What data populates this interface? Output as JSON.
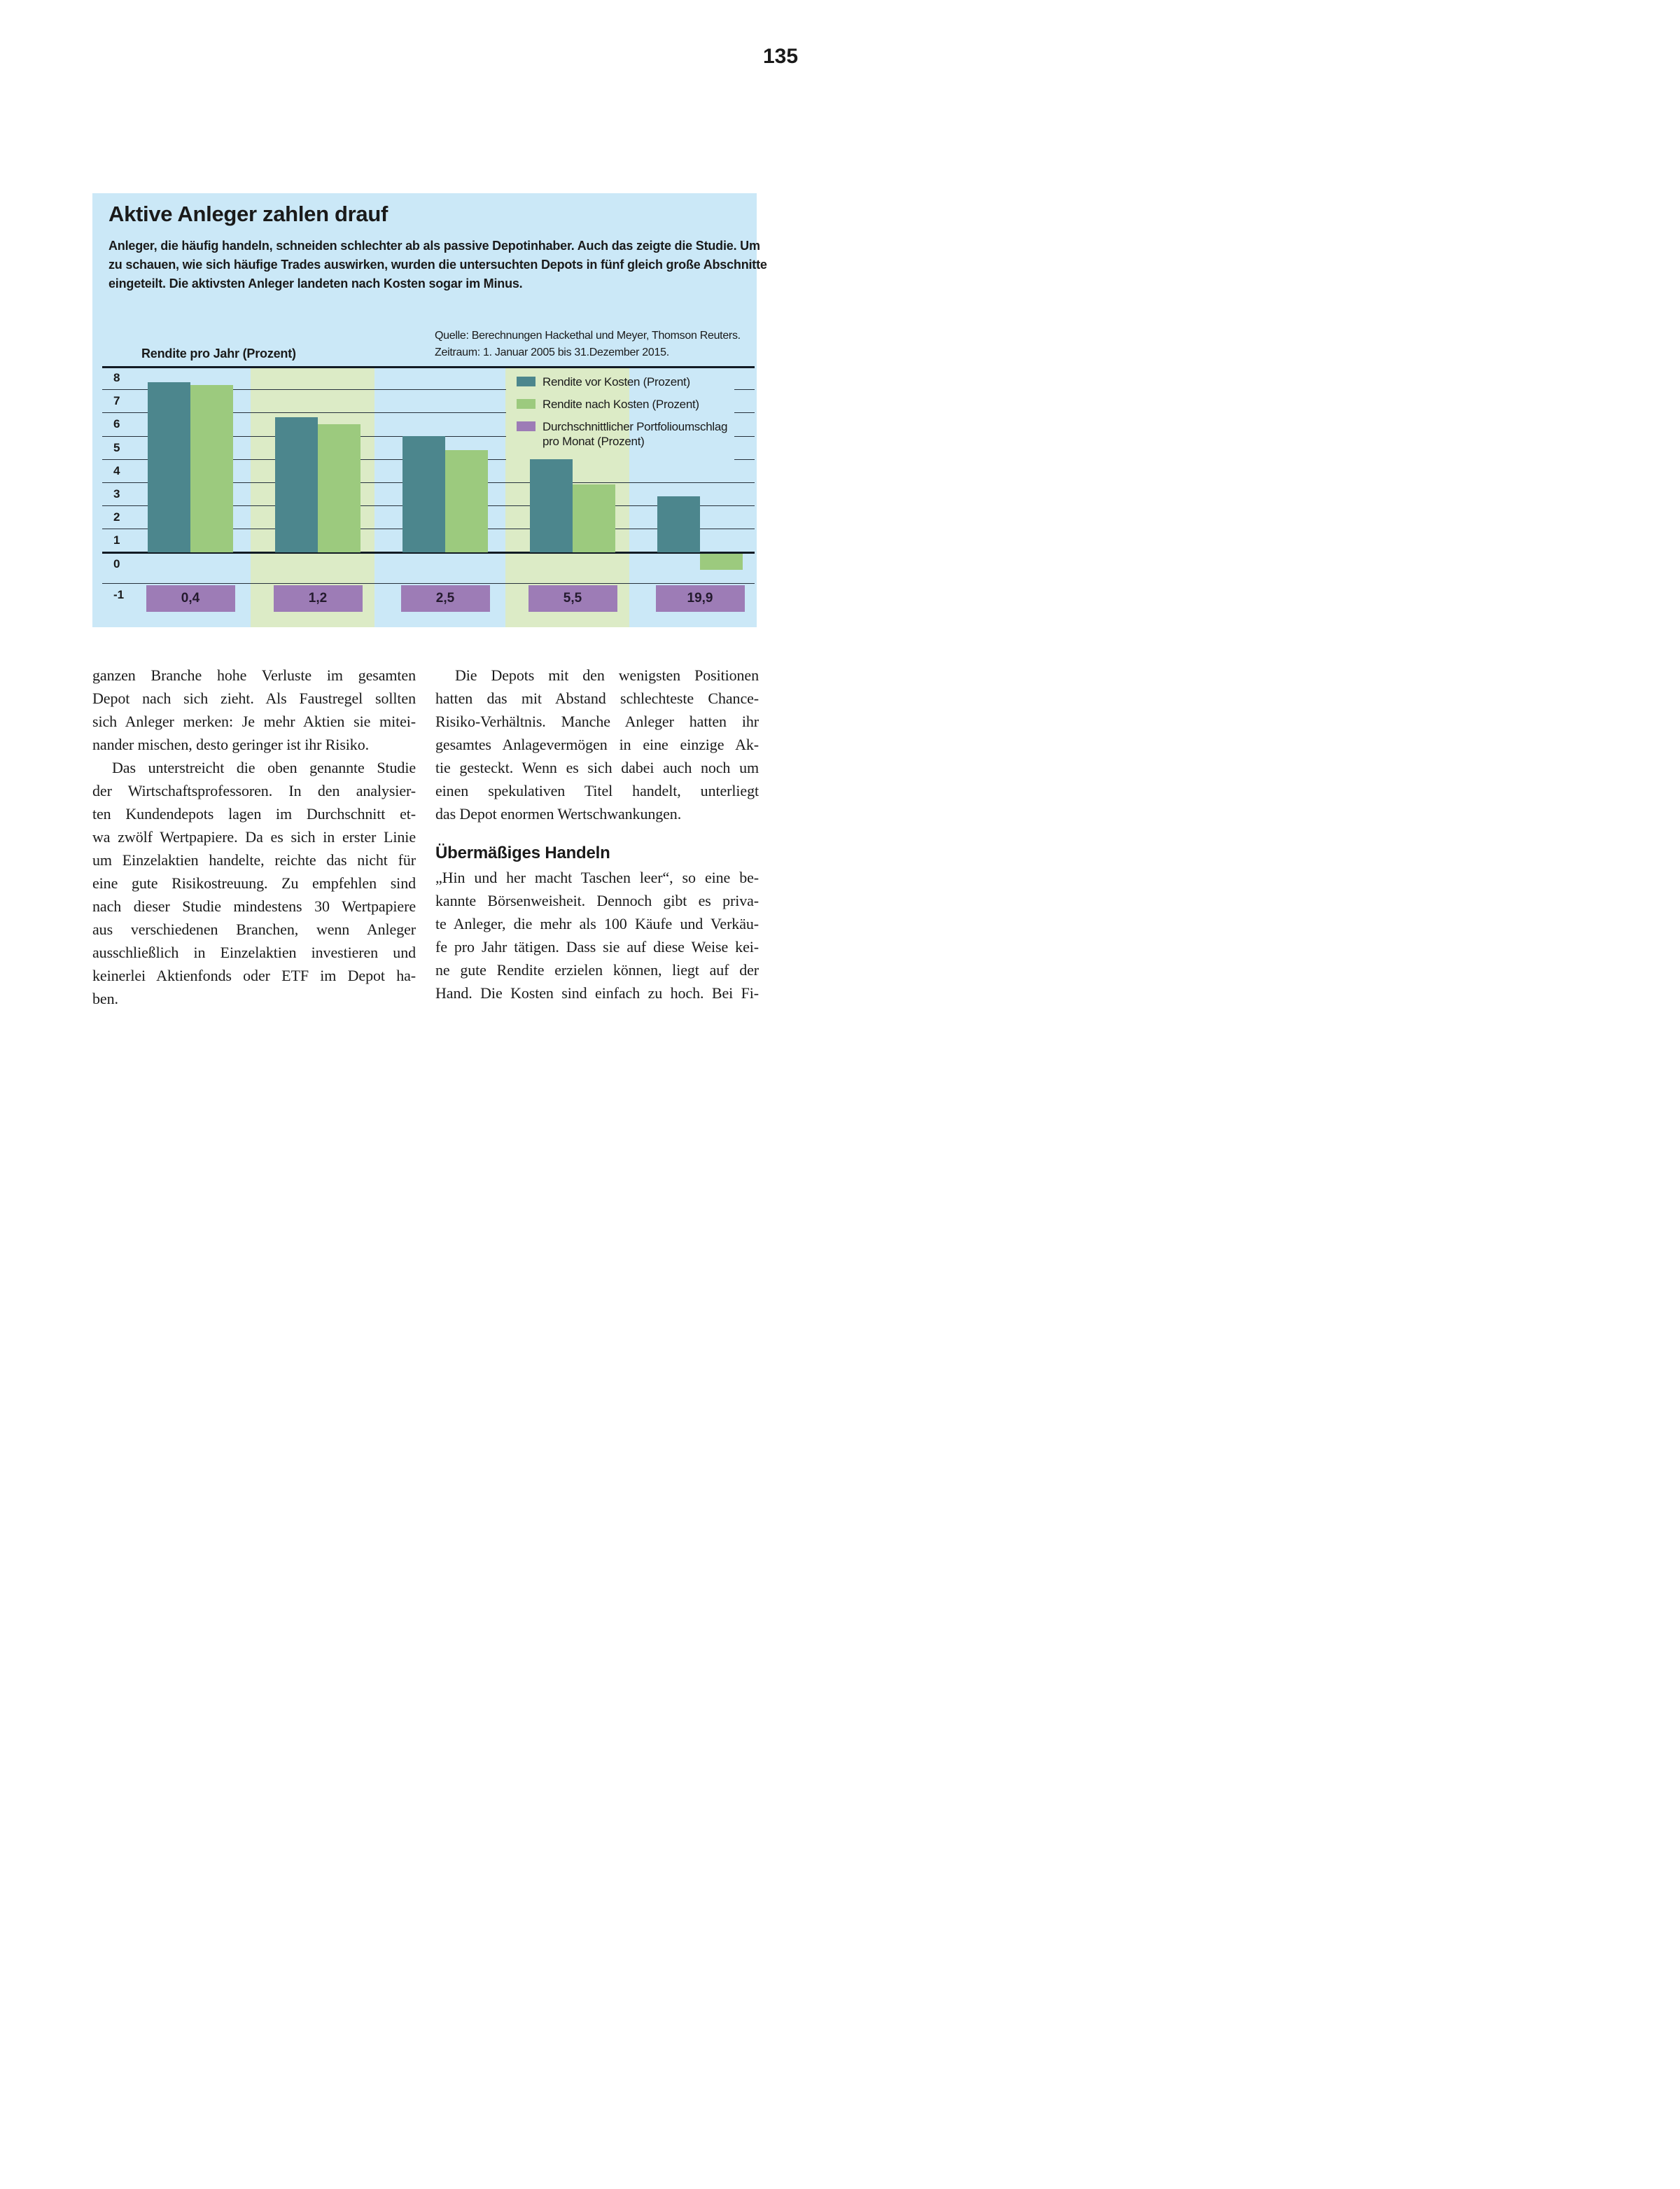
{
  "page": {
    "number": "135"
  },
  "infobox": {
    "title": "Aktive Anleger zahlen drauf",
    "intro_line1": "Anleger, die häufig handeln, schneiden schlechter ab als passive Depotinhaber. Auch das zeigte die Studie. Um",
    "intro_line2": "zu schauen, wie sich häufige Trades auswirken, wurden die untersuchten Depots in fünf gleich große Abschnitte",
    "intro_line3": "eingeteilt. Die aktivsten Anleger landeten nach Kosten sogar im Minus.",
    "source_line1": "Quelle: Berechnungen Hackethal und Meyer, Thomson Reuters.",
    "source_line2": "Zeitraum: 1. Januar 2005 bis 31.Dezember 2015.",
    "axis_title": "Rendite pro Jahr (Prozent)"
  },
  "chart_data": {
    "type": "bar",
    "title": "Aktive Anleger zahlen drauf",
    "ylabel": "Rendite pro Jahr (Prozent)",
    "ylim": [
      -1,
      8
    ],
    "yticks": [
      8,
      7,
      6,
      5,
      4,
      3,
      2,
      1,
      0,
      -1
    ],
    "grid": true,
    "groups": 5,
    "highlighted_group_indexes": [
      1,
      3
    ],
    "series": [
      {
        "name": "Rendite vor Kosten (Prozent)",
        "color": "#4c868d",
        "values": [
          7.3,
          5.8,
          5.0,
          4.0,
          2.4
        ]
      },
      {
        "name": "Rendite nach Kosten (Prozent)",
        "color": "#9cca7e",
        "values": [
          7.2,
          5.5,
          4.4,
          2.9,
          -0.7
        ]
      },
      {
        "name": "Durchschnittlicher Portfolioumschlag pro Monat (Prozent)",
        "color": "#9d7cb6",
        "values": [
          0.4,
          1.2,
          2.5,
          5.5,
          19.9
        ],
        "display": "label-band",
        "labels": [
          "0,4",
          "1,2",
          "2,5",
          "5,5",
          "19,9"
        ]
      }
    ],
    "legend": [
      {
        "color": "#4c868d",
        "lines": [
          "Rendite vor Kosten (Prozent)"
        ]
      },
      {
        "color": "#9cca7e",
        "lines": [
          "Rendite nach Kosten (Prozent)"
        ]
      },
      {
        "color": "#9d7cb6",
        "lines": [
          "Durchschnittlicher Portfolioumschlag",
          "pro Monat (Prozent)"
        ]
      }
    ],
    "legend_position": "upper right",
    "colors": {
      "box_background": "#cbe8f7",
      "highlight_band": "#dcebc6",
      "gridline": "#25303b",
      "axis_line": "#121b24",
      "band_label_text": "#241a2e"
    }
  },
  "article": {
    "left_column": [
      {
        "type": "p",
        "lines": [
          {
            "text": "ganzen Branche hohe Verluste im gesamten",
            "indent": false,
            "last": false
          },
          {
            "text": "Depot nach sich zieht. Als Faustregel sollten",
            "indent": false,
            "last": false
          },
          {
            "text": "sich Anleger merken: Je mehr Aktien sie mitei-",
            "indent": false,
            "last": false
          },
          {
            "text": "nander mischen, desto geringer ist ihr Risiko.",
            "indent": false,
            "last": true
          }
        ]
      },
      {
        "type": "p",
        "lines": [
          {
            "text": "Das unterstreicht die oben genannte Studie",
            "indent": true,
            "last": false
          },
          {
            "text": "der Wirtschaftsprofessoren. In den analysier-",
            "indent": false,
            "last": false
          },
          {
            "text": "ten Kundendepots lagen im Durchschnitt et-",
            "indent": false,
            "last": false
          },
          {
            "text": "wa zwölf Wertpapiere. Da es sich in erster Linie",
            "indent": false,
            "last": false
          },
          {
            "text": "um Einzelaktien handelte, reichte das nicht für",
            "indent": false,
            "last": false
          },
          {
            "text": "eine gute Risikostreuung. Zu empfehlen sind",
            "indent": false,
            "last": false
          },
          {
            "text": "nach dieser Studie mindestens 30 Wertpapiere",
            "indent": false,
            "last": false
          },
          {
            "text": "aus verschiedenen Branchen, wenn Anleger",
            "indent": false,
            "last": false
          },
          {
            "text": "ausschließlich in Einzelaktien investieren und",
            "indent": false,
            "last": false
          },
          {
            "text": "keinerlei Aktienfonds oder ETF im Depot ha-",
            "indent": false,
            "last": false
          },
          {
            "text": "ben.",
            "indent": false,
            "last": true
          }
        ]
      }
    ],
    "right_column": [
      {
        "type": "p",
        "lines": [
          {
            "text": "Die Depots mit den wenigsten Positionen",
            "indent": true,
            "last": false
          },
          {
            "text": "hatten das mit Abstand schlechteste Chance-",
            "indent": false,
            "last": false
          },
          {
            "text": "Risiko-Verhältnis. Manche Anleger hatten ihr",
            "indent": false,
            "last": false
          },
          {
            "text": "gesamtes Anlagevermögen in eine einzige Ak-",
            "indent": false,
            "last": false
          },
          {
            "text": "tie gesteckt. Wenn es sich dabei auch noch um",
            "indent": false,
            "last": false
          },
          {
            "text": "einen spekulativen Titel handelt, unterliegt",
            "indent": false,
            "last": false
          },
          {
            "text": "das Depot enormen Wertschwankungen.",
            "indent": false,
            "last": true
          }
        ]
      },
      {
        "type": "h2",
        "text": "Übermäßiges Handeln"
      },
      {
        "type": "p",
        "lines": [
          {
            "text": "„Hin und her macht Taschen leer“, so eine be-",
            "indent": false,
            "last": false
          },
          {
            "text": "kannte Börsenweisheit. Dennoch gibt es priva-",
            "indent": false,
            "last": false
          },
          {
            "text": "te Anleger, die mehr als 100 Käufe und Verkäu-",
            "indent": false,
            "last": false
          },
          {
            "text": "fe pro Jahr tätigen. Dass sie auf diese Weise kei-",
            "indent": false,
            "last": false
          },
          {
            "text": "ne gute Rendite erzielen können, liegt auf der",
            "indent": false,
            "last": false
          },
          {
            "text": "Hand. Die Kosten sind einfach zu hoch. Bei Fi-",
            "indent": false,
            "last": false
          }
        ]
      }
    ]
  }
}
